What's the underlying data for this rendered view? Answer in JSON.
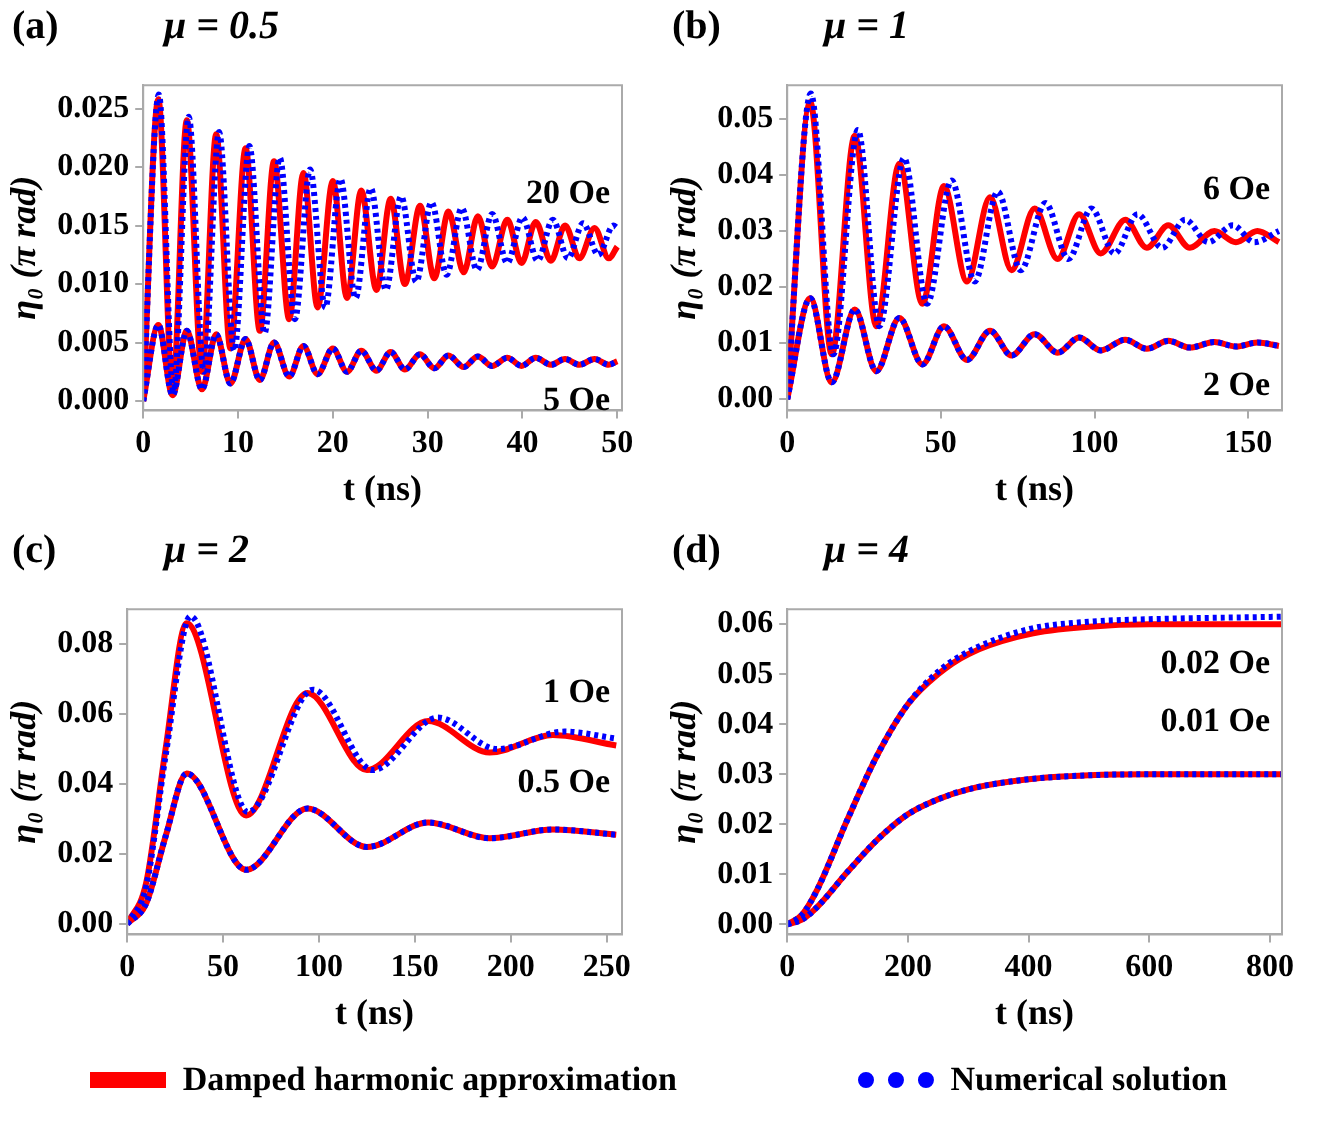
{
  "chart_data": [
    {
      "type": "line",
      "title": "(a)",
      "subtitle": "μ = 0.5",
      "xlabel": "t (ns)",
      "ylabel": "η₀ (π rad)",
      "xlim": [
        0,
        50.5
      ],
      "ylim": [
        -0.0008,
        0.027
      ],
      "xticks": [
        0,
        10,
        20,
        30,
        40,
        50
      ],
      "yticks": [
        {
          "value": 0,
          "label": "0.000"
        },
        0.005,
        {
          "value": 0.01,
          "label": "0.010"
        },
        0.015,
        {
          "value": 0.02,
          "label": "0.020"
        },
        0.025
      ],
      "grid": false,
      "marker": "none",
      "legend": "bottom",
      "annotations": [
        "20 Oe",
        "5 Oe"
      ],
      "series": [
        {
          "name": "Damped harmonic approximation",
          "color": "#ff0000",
          "line_style": "solid",
          "x": [
            0,
            1.6,
            3.1,
            4.6,
            6.2,
            7.7,
            9.2,
            10.8,
            12.3,
            13.8,
            15.4,
            16.9,
            18.4,
            20.0,
            21.5,
            23.0,
            24.6,
            26.1,
            27.6,
            29.2,
            30.7,
            32.2,
            33.8,
            35.3,
            36.8,
            38.4,
            39.9,
            41.4,
            43.0,
            44.5,
            46.0,
            47.6,
            49.1,
            50
          ],
          "values": [
            0,
            0.0258,
            0.0008,
            0.024,
            0.0025,
            0.0228,
            0.0045,
            0.0216,
            0.006,
            0.0205,
            0.007,
            0.0195,
            0.008,
            0.0188,
            0.0088,
            0.018,
            0.0095,
            0.0173,
            0.01,
            0.0167,
            0.0105,
            0.0162,
            0.011,
            0.0158,
            0.0115,
            0.0155,
            0.0118,
            0.0153,
            0.012,
            0.015,
            0.0122,
            0.0148,
            0.0122,
            0.0132
          ]
        },
        {
          "name": "Numerical solution",
          "color": "#0000ff",
          "line_style": "dotted",
          "x": [
            0,
            1.65,
            3.2,
            4.8,
            6.4,
            8.0,
            9.6,
            11.2,
            12.8,
            14.4,
            16.0,
            17.6,
            19.2,
            20.8,
            22.4,
            24.0,
            25.6,
            27.2,
            28.8,
            30.4,
            32.0,
            33.6,
            35.2,
            36.8,
            38.4,
            40.0,
            41.6,
            43.2,
            44.8,
            46.4,
            48.0,
            49.6,
            50
          ],
          "values": [
            0,
            0.0262,
            0.0008,
            0.0243,
            0.0025,
            0.023,
            0.0043,
            0.0218,
            0.0058,
            0.0208,
            0.007,
            0.0198,
            0.008,
            0.019,
            0.0088,
            0.0182,
            0.0095,
            0.0175,
            0.0102,
            0.017,
            0.0108,
            0.0165,
            0.0112,
            0.016,
            0.0118,
            0.0157,
            0.012,
            0.0155,
            0.0122,
            0.0152,
            0.0125,
            0.015,
            0.0148
          ]
        },
        {
          "color": "#ff0000",
          "line_style": "solid",
          "x": [
            0,
            1.6,
            3.1,
            4.6,
            6.2,
            7.7,
            9.2,
            10.8,
            12.3,
            13.8,
            15.4,
            16.9,
            18.4,
            20.0,
            21.5,
            23.0,
            24.6,
            26.1,
            27.6,
            29.2,
            30.7,
            32.2,
            33.8,
            35.3,
            36.8,
            38.4,
            39.9,
            41.4,
            43.0,
            44.5,
            46.0,
            47.6,
            49.1,
            50
          ],
          "values": [
            0,
            0.0065,
            0.0005,
            0.006,
            0.001,
            0.0057,
            0.0015,
            0.0053,
            0.0018,
            0.005,
            0.0021,
            0.0047,
            0.0023,
            0.0045,
            0.0025,
            0.0043,
            0.0026,
            0.0042,
            0.0027,
            0.004,
            0.0028,
            0.0039,
            0.0029,
            0.0038,
            0.003,
            0.0037,
            0.003,
            0.0037,
            0.0031,
            0.0036,
            0.0031,
            0.0036,
            0.0031,
            0.0034
          ]
        },
        {
          "color": "#0000ff",
          "line_style": "dotted",
          "x": [
            0,
            1.6,
            3.1,
            4.6,
            6.2,
            7.7,
            9.2,
            10.8,
            12.3,
            13.8,
            15.4,
            16.9,
            18.4,
            20.0,
            21.5,
            23.0,
            24.6,
            26.1,
            27.6,
            29.2,
            30.7,
            32.2,
            33.8,
            35.3,
            36.8,
            38.4,
            39.9,
            41.4,
            43.0,
            44.5,
            46.0,
            47.6,
            49.1,
            50
          ],
          "values": [
            0,
            0.0065,
            0.0005,
            0.006,
            0.001,
            0.0057,
            0.0015,
            0.0053,
            0.0018,
            0.005,
            0.0021,
            0.0047,
            0.0023,
            0.0045,
            0.0025,
            0.0043,
            0.0026,
            0.0042,
            0.0027,
            0.004,
            0.0028,
            0.0039,
            0.0029,
            0.0038,
            0.003,
            0.0037,
            0.003,
            0.0037,
            0.0031,
            0.0036,
            0.0031,
            0.0036,
            0.0031,
            0.0034
          ]
        }
      ]
    },
    {
      "type": "line",
      "title": "(b)",
      "subtitle": "μ = 1",
      "xlabel": "t (ns)",
      "ylabel": "η₀ (π rad)",
      "xlim": [
        0,
        161
      ],
      "ylim": [
        -0.002,
        0.056
      ],
      "xticks": [
        0,
        50,
        100,
        150
      ],
      "yticks": [
        {
          "value": 0,
          "label": "0.00"
        },
        0.01,
        0.02,
        0.03,
        0.04,
        0.05
      ],
      "grid": false,
      "marker": "none",
      "annotations": [
        "6 Oe",
        "2 Oe"
      ],
      "series": [
        {
          "color": "#ff0000",
          "line_style": "solid",
          "x": [
            0,
            7.5,
            14.5,
            22,
            29,
            36.5,
            44,
            51,
            58.5,
            66,
            73,
            80.5,
            88,
            95,
            102,
            110,
            117,
            124,
            131,
            139,
            146,
            153,
            160
          ],
          "values": [
            0,
            0.053,
            0.008,
            0.047,
            0.013,
            0.042,
            0.017,
            0.038,
            0.021,
            0.036,
            0.023,
            0.034,
            0.025,
            0.033,
            0.026,
            0.032,
            0.027,
            0.031,
            0.027,
            0.03,
            0.028,
            0.03,
            0.028
          ]
        },
        {
          "color": "#0000ff",
          "line_style": "dotted",
          "x": [
            0,
            7.7,
            15,
            23,
            30,
            38,
            45.5,
            53.5,
            61,
            68.5,
            76,
            84,
            91.5,
            99,
            106.5,
            114,
            122,
            129.5,
            137,
            145,
            152,
            160
          ],
          "values": [
            0,
            0.0545,
            0.008,
            0.048,
            0.013,
            0.043,
            0.017,
            0.039,
            0.021,
            0.037,
            0.023,
            0.035,
            0.025,
            0.034,
            0.026,
            0.033,
            0.027,
            0.032,
            0.028,
            0.031,
            0.028,
            0.03
          ]
        },
        {
          "color": "#ff0000",
          "line_style": "solid",
          "x": [
            0,
            7.5,
            14.5,
            22,
            29,
            36.5,
            44,
            51,
            58.5,
            66,
            73,
            80.5,
            88,
            95,
            102,
            110,
            117,
            124,
            131,
            139,
            146,
            153,
            160
          ],
          "values": [
            0,
            0.018,
            0.003,
            0.016,
            0.005,
            0.0145,
            0.0062,
            0.013,
            0.007,
            0.0122,
            0.0078,
            0.0116,
            0.0083,
            0.011,
            0.0087,
            0.0106,
            0.009,
            0.0104,
            0.0092,
            0.0102,
            0.0094,
            0.0101,
            0.0095
          ]
        },
        {
          "color": "#0000ff",
          "line_style": "dotted",
          "x": [
            0,
            7.5,
            14.5,
            22,
            29,
            36.5,
            44,
            51,
            58.5,
            66,
            73,
            80.5,
            88,
            95,
            102,
            110,
            117,
            124,
            131,
            139,
            146,
            153,
            160
          ],
          "values": [
            0,
            0.018,
            0.003,
            0.016,
            0.005,
            0.0145,
            0.0062,
            0.013,
            0.007,
            0.0122,
            0.0078,
            0.0116,
            0.0083,
            0.011,
            0.0087,
            0.0106,
            0.009,
            0.0104,
            0.0092,
            0.0102,
            0.0094,
            0.0101,
            0.0095
          ]
        }
      ]
    },
    {
      "type": "line",
      "title": "(c)",
      "subtitle": "μ = 2",
      "xlabel": "t (ns)",
      "ylabel": "η₀ (π rad)",
      "xlim": [
        0,
        258
      ],
      "ylim": [
        -0.003,
        0.09
      ],
      "xticks": [
        0,
        50,
        100,
        150,
        200,
        250
      ],
      "yticks": [
        {
          "value": 0,
          "label": "0.00"
        },
        0.02,
        0.04,
        0.06,
        0.08
      ],
      "grid": false,
      "marker": "none",
      "annotations": [
        "1 Oe",
        "0.5 Oe"
      ],
      "series": [
        {
          "color": "#ff0000",
          "line_style": "solid",
          "x": [
            0,
            10,
            20,
            31,
            62,
            94,
            125,
            157,
            189,
            222,
            255
          ],
          "values": [
            0,
            0.012,
            0.05,
            0.086,
            0.031,
            0.066,
            0.044,
            0.058,
            0.049,
            0.054,
            0.051
          ]
        },
        {
          "color": "#0000ff",
          "line_style": "dotted",
          "x": [
            0,
            10,
            20,
            33,
            63,
            97,
            128,
            162,
            193,
            228,
            255
          ],
          "values": [
            0,
            0.011,
            0.048,
            0.088,
            0.032,
            0.067,
            0.044,
            0.059,
            0.05,
            0.055,
            0.053
          ]
        },
        {
          "color": "#ff0000",
          "line_style": "solid",
          "x": [
            0,
            10,
            20,
            31,
            62,
            94,
            125,
            157,
            189,
            222,
            255
          ],
          "values": [
            0,
            0.006,
            0.025,
            0.043,
            0.0155,
            0.033,
            0.022,
            0.029,
            0.0245,
            0.027,
            0.0255
          ]
        },
        {
          "color": "#0000ff",
          "line_style": "dotted",
          "x": [
            0,
            10,
            20,
            31,
            62,
            94,
            125,
            157,
            189,
            222,
            255
          ],
          "values": [
            0,
            0.006,
            0.025,
            0.043,
            0.0155,
            0.033,
            0.022,
            0.029,
            0.0245,
            0.027,
            0.0255
          ]
        }
      ]
    },
    {
      "type": "line",
      "title": "(d)",
      "subtitle": "μ = 4",
      "xlabel": "t (ns)",
      "ylabel": "η₀ (π rad)",
      "xlim": [
        0,
        820
      ],
      "ylim": [
        -0.002,
        0.063
      ],
      "xticks": [
        0,
        200,
        400,
        600,
        800
      ],
      "yticks": [
        {
          "value": 0,
          "label": "0.00"
        },
        0.01,
        0.02,
        0.03,
        0.04,
        0.05,
        0.06
      ],
      "grid": false,
      "marker": "none",
      "annotations": [
        "0.02 Oe",
        "0.01 Oe"
      ],
      "series": [
        {
          "color": "#ff0000",
          "line_style": "solid",
          "x": [
            0,
            25,
            50,
            100,
            150,
            200,
            250,
            300,
            400,
            500,
            600,
            820
          ],
          "values": [
            0,
            0.002,
            0.007,
            0.021,
            0.034,
            0.044,
            0.05,
            0.054,
            0.058,
            0.0595,
            0.06,
            0.06
          ]
        },
        {
          "color": "#0000ff",
          "line_style": "dotted",
          "x": [
            0,
            25,
            50,
            100,
            150,
            200,
            250,
            300,
            400,
            500,
            600,
            820
          ],
          "values": [
            0,
            0.002,
            0.007,
            0.021,
            0.034,
            0.044,
            0.0505,
            0.0545,
            0.059,
            0.0605,
            0.061,
            0.0615
          ]
        },
        {
          "color": "#ff0000",
          "line_style": "solid",
          "x": [
            0,
            25,
            50,
            100,
            150,
            200,
            250,
            300,
            400,
            500,
            600,
            820
          ],
          "values": [
            0,
            0.001,
            0.0035,
            0.0105,
            0.017,
            0.022,
            0.025,
            0.027,
            0.029,
            0.0298,
            0.03,
            0.03
          ]
        },
        {
          "color": "#0000ff",
          "line_style": "dotted",
          "x": [
            0,
            25,
            50,
            100,
            150,
            200,
            250,
            300,
            400,
            500,
            600,
            820
          ],
          "values": [
            0,
            0.001,
            0.0035,
            0.0105,
            0.017,
            0.022,
            0.025,
            0.027,
            0.029,
            0.0298,
            0.03,
            0.03
          ]
        }
      ]
    }
  ]
}
